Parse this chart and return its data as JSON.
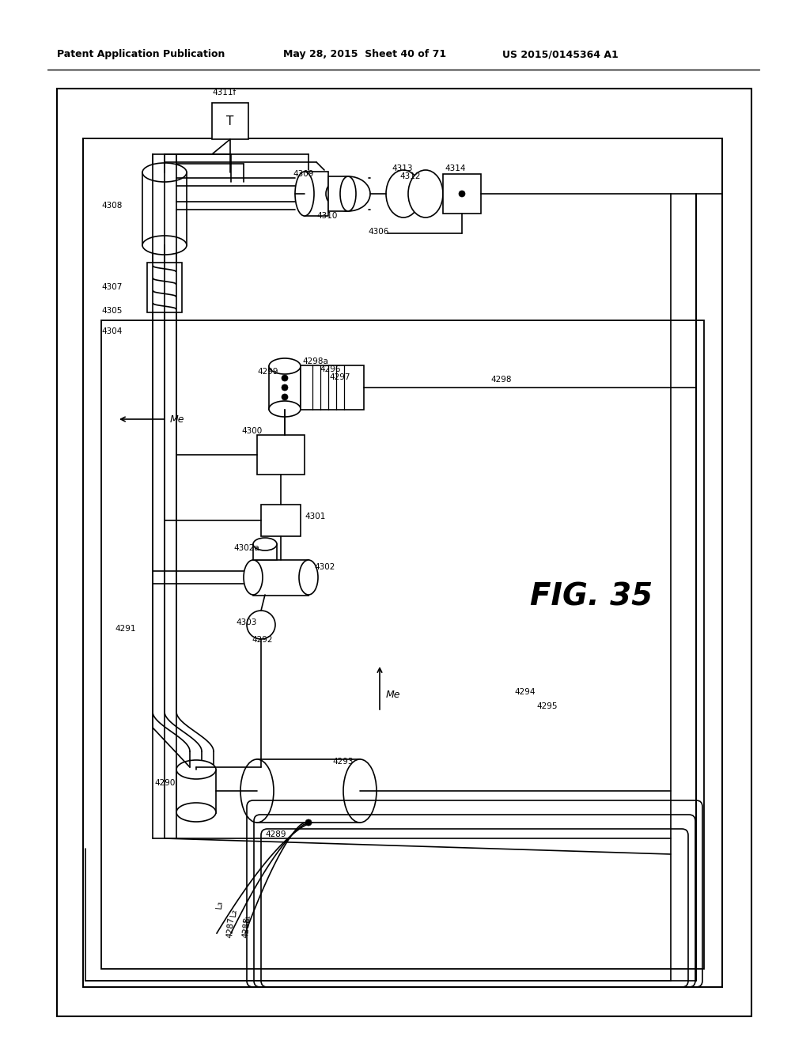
{
  "bg_color": "#ffffff",
  "header_left": "Patent Application Publication",
  "header_mid": "May 28, 2015  Sheet 40 of 71",
  "header_right": "US 2015/0145364 A1",
  "fig_label": "FIG. 35"
}
